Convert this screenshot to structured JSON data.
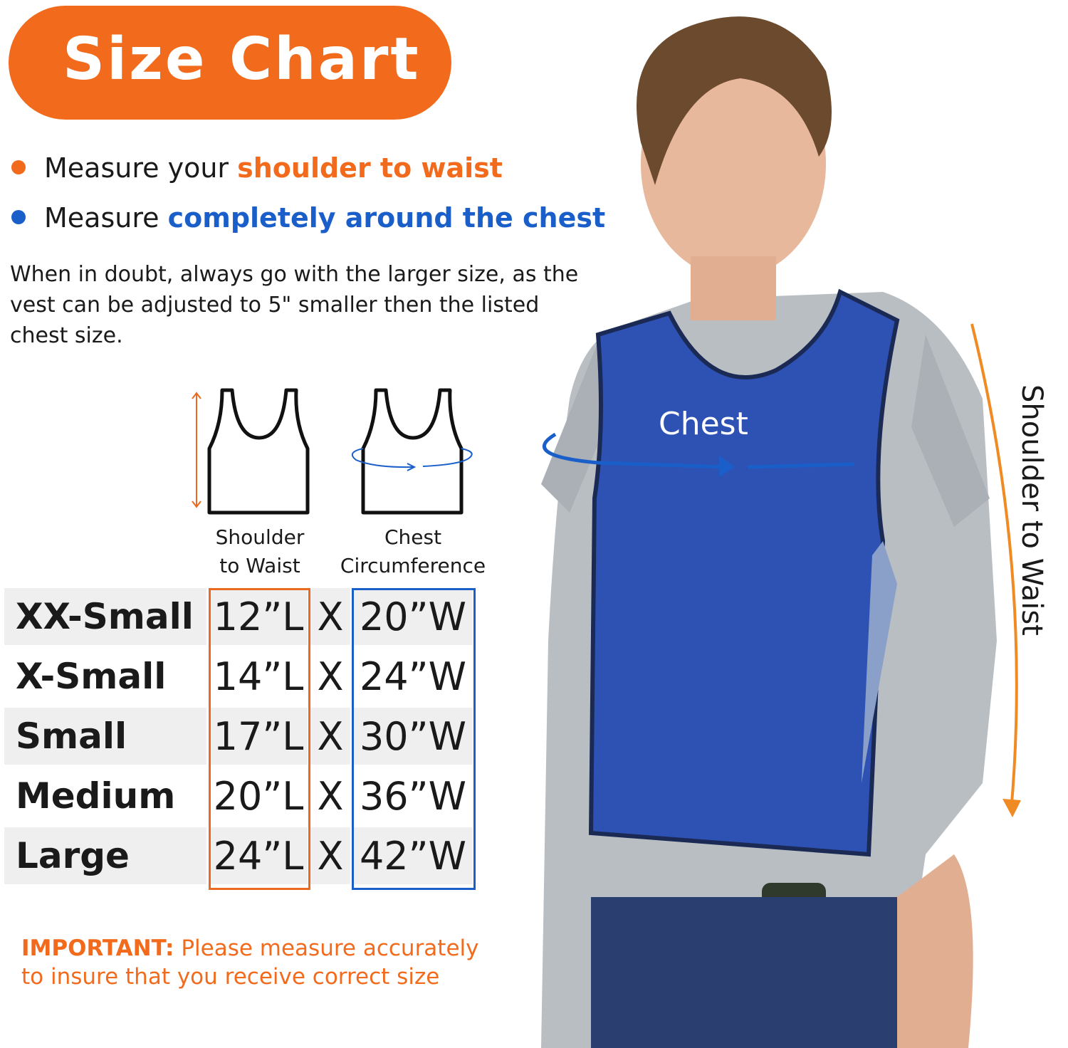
{
  "title": "Size Chart",
  "bullets": [
    {
      "prefix": "Measure your ",
      "highlight": "shoulder to waist",
      "color": "#F26B1D"
    },
    {
      "prefix": "Measure ",
      "highlight": "completely around the chest",
      "color": "#1A5FC9"
    }
  ],
  "note": "When in doubt, always go with the larger size, as the vest can be adjusted to 5\" smaller then the listed chest size.",
  "icons": [
    {
      "name": "shoulder-to-waist",
      "label_line1": "Shoulder",
      "label_line2": "to Waist"
    },
    {
      "name": "chest-circumference",
      "label_line1": "Chest",
      "label_line2": "Circumference"
    }
  ],
  "sizes": [
    {
      "size": "XX-Small",
      "length": "12”L",
      "x": "X",
      "width": "20”W"
    },
    {
      "size": "X-Small",
      "length": "14”L",
      "x": "X",
      "width": "24”W"
    },
    {
      "size": "Small",
      "length": "17”L",
      "x": "X",
      "width": "30”W"
    },
    {
      "size": "Medium",
      "length": "20”L",
      "x": "X",
      "width": "36”W"
    },
    {
      "size": "Large",
      "length": "24”L",
      "x": "X",
      "width": "42”W"
    }
  ],
  "important": {
    "label": "IMPORTANT:",
    "line1": " Please measure accurately",
    "line2": "to insure that you receive correct size"
  },
  "photo": {
    "chest_label": "Chest",
    "shoulder_label": "Shoulder to Waist"
  },
  "colors": {
    "orange": "#F26B1D",
    "blue": "#1A5FC9",
    "vest": "#2E52B4"
  }
}
